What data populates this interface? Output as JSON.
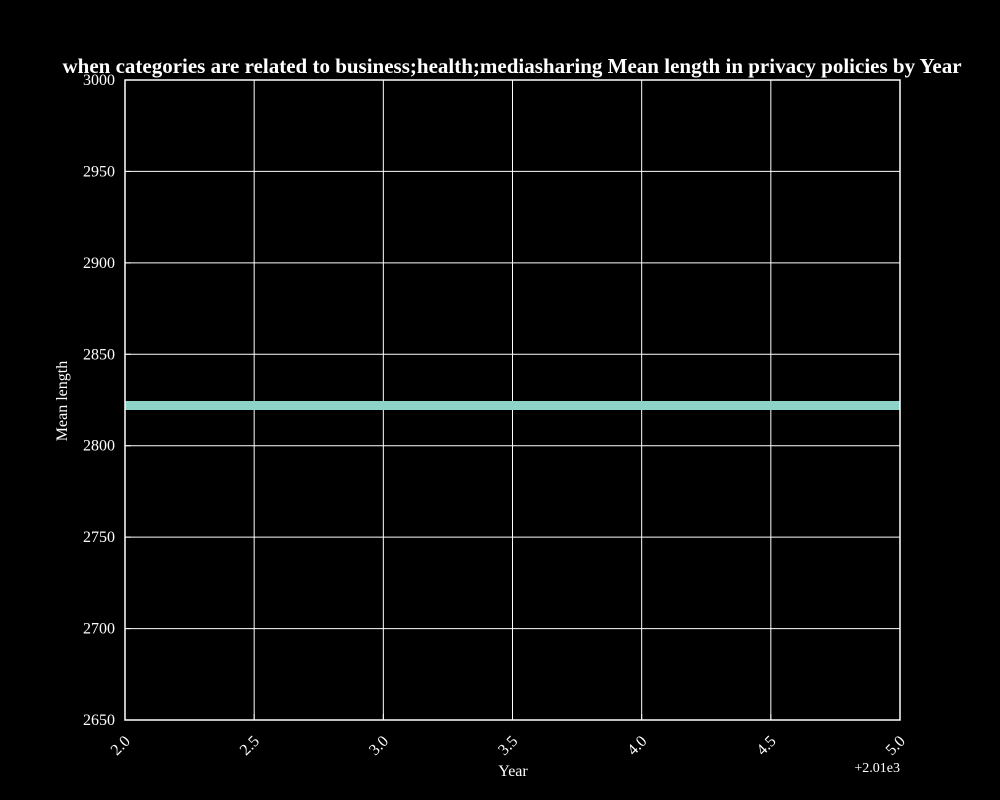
{
  "chart_data": {
    "type": "line",
    "title": "when categories are related to business;health;mediasharing Mean length in privacy policies by Year",
    "xlabel": "Year",
    "ylabel": "Mean length",
    "x_offset_label": "+2.01e3",
    "xlim": [
      2.0,
      5.0
    ],
    "ylim": [
      2650,
      3000
    ],
    "x_ticks": [
      2.0,
      2.5,
      3.0,
      3.5,
      4.0,
      4.5,
      5.0
    ],
    "x_tick_labels": [
      "2.0",
      "2.5",
      "3.0",
      "3.5",
      "4.0",
      "4.5",
      "5.0"
    ],
    "y_ticks": [
      2650,
      2700,
      2750,
      2800,
      2850,
      2900,
      2950,
      3000
    ],
    "y_tick_labels": [
      "2650",
      "2700",
      "2750",
      "2800",
      "2850",
      "2900",
      "2950",
      "3000"
    ],
    "grid": true,
    "series": [
      {
        "x": [
          2.0,
          3.0,
          4.0,
          5.0
        ],
        "y": [
          2822,
          2822,
          2822,
          2822
        ],
        "color": "#8dd3c7"
      }
    ],
    "background_color": "#000000",
    "foreground_color": "#ffffff"
  }
}
